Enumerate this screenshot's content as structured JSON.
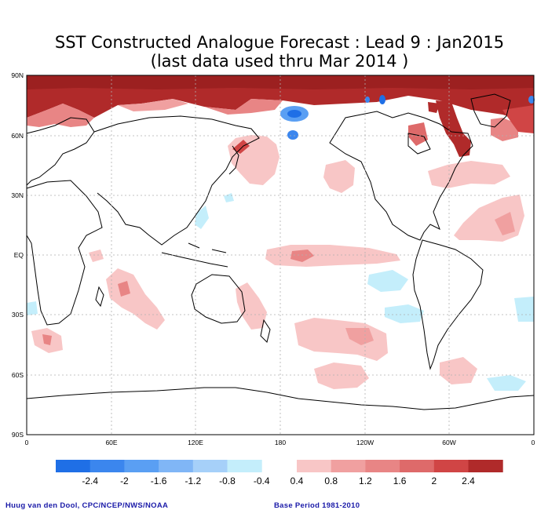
{
  "title_line1": "SST Constructed Analogue Forecast : Lead 9 : Jan2015",
  "title_line2": "(last data used thru Mar 2014 )",
  "lat_labels": [
    "90N",
    "60N",
    "30N",
    "EQ",
    "30S",
    "60S",
    "90S"
  ],
  "lon_labels": [
    "0",
    "60E",
    "120E",
    "180",
    "120W",
    "60W",
    "0"
  ],
  "colorbar": {
    "negative": {
      "colors": [
        "#1f6fe6",
        "#3b86ee",
        "#5a9ff3",
        "#80b6f6",
        "#a6d0f9",
        "#c4eefb"
      ],
      "labels": [
        "-2.4",
        "-2",
        "-1.6",
        "-1.2",
        "-0.8",
        "-0.4"
      ]
    },
    "positive": {
      "colors": [
        "#f8c6c6",
        "#f0a0a0",
        "#e88585",
        "#de6a6a",
        "#d04545",
        "#b02a2a"
      ],
      "labels": [
        "0.4",
        "0.8",
        "1.2",
        "1.6",
        "2",
        "2.4"
      ]
    }
  },
  "footer_left": "Huug van den Dool, CPC/NCEP/NWS/NOAA",
  "footer_right": "Base Period 1981-2010",
  "colors": {
    "land_outline": "#000000",
    "grid": "#b0b0b0",
    "frame": "#000000"
  }
}
